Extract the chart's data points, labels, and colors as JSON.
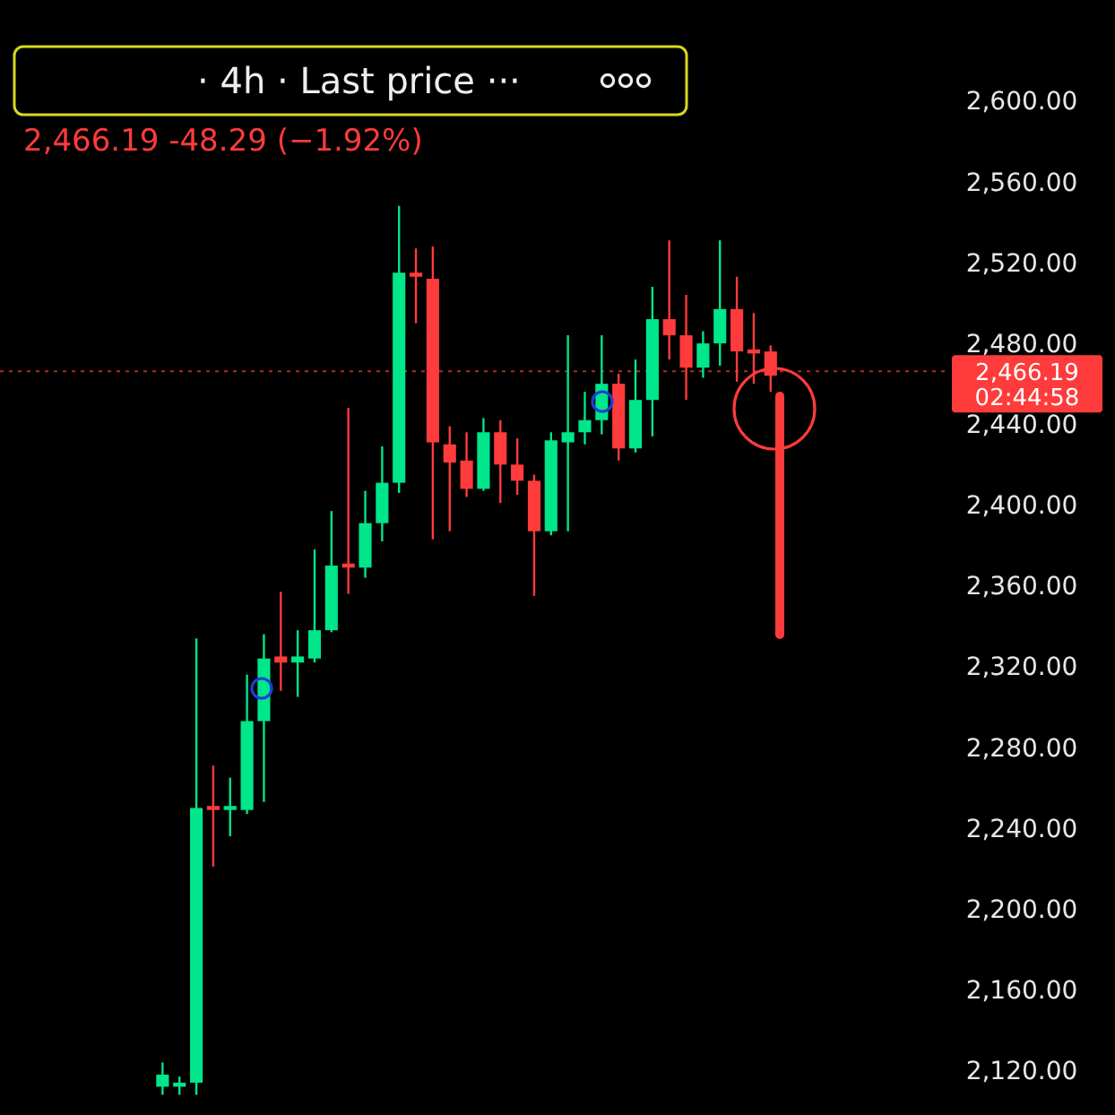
{
  "chart_data": {
    "type": "candlestick",
    "title": "· 4h · Last price ···",
    "subtitle": "2,466.19  -48.29 (−1.92%)",
    "categories": [
      null,
      null,
      null,
      null,
      null,
      null,
      null,
      null,
      null,
      null,
      null,
      null,
      null,
      null,
      null,
      null,
      null,
      null,
      null,
      null,
      null,
      null,
      null,
      null,
      null,
      null,
      null,
      null,
      null,
      null,
      null,
      null,
      null,
      null,
      null,
      null,
      null,
      null,
      null,
      null,
      null,
      null,
      null,
      null,
      null,
      null,
      null,
      null,
      null,
      null,
      null,
      null,
      null,
      null,
      null,
      null
    ],
    "ohlc": [
      null,
      null,
      null,
      null,
      null,
      null,
      null,
      null,
      null,
      [
        2112,
        2124,
        2108,
        2118
      ],
      [
        2112,
        2117,
        2108,
        2114
      ],
      [
        2114,
        2334,
        2108,
        2250
      ],
      [
        2251,
        2271,
        2221,
        2249
      ],
      [
        2249,
        2265,
        2236,
        2251
      ],
      [
        2249,
        2316,
        2247,
        2293
      ],
      [
        2293,
        2336,
        2253,
        2324
      ],
      [
        2325,
        2357,
        2308,
        2322
      ],
      [
        2322,
        2338,
        2305,
        2325
      ],
      [
        2324,
        2378,
        2322,
        2338
      ],
      [
        2338,
        2397,
        2337,
        2370
      ],
      [
        2371,
        2448,
        2356,
        2369
      ],
      [
        2369,
        2407,
        2364,
        2391
      ],
      [
        2391,
        2429,
        2382,
        2411
      ],
      [
        2411,
        2548,
        2406,
        2515
      ],
      [
        2515,
        2527,
        2490,
        2513
      ],
      [
        2512,
        2528,
        2383,
        2431
      ],
      [
        2430,
        2439,
        2387,
        2421
      ],
      [
        2422,
        2436,
        2404,
        2408
      ],
      [
        2408,
        2443,
        2407,
        2436
      ],
      [
        2436,
        2442,
        2401,
        2420
      ],
      [
        2420,
        2433,
        2405,
        2412
      ],
      [
        2412,
        2415,
        2355,
        2387
      ],
      [
        2387,
        2436,
        2385,
        2432
      ],
      [
        2431,
        2484,
        2387,
        2436
      ],
      [
        2436,
        2456,
        2430,
        2442
      ],
      [
        2442,
        2484,
        2435,
        2460
      ],
      [
        2460,
        2465,
        2422,
        2428
      ],
      [
        2428,
        2472,
        2426,
        2452
      ],
      [
        2452,
        2508,
        2434,
        2492
      ],
      [
        2492,
        2531,
        2472,
        2484
      ],
      [
        2484,
        2504,
        2452,
        2468
      ],
      [
        2468,
        2486,
        2463,
        2480
      ],
      [
        2480,
        2531,
        2469,
        2497
      ],
      [
        2497,
        2513,
        2461,
        2476
      ],
      [
        2477,
        2495,
        2460,
        2475
      ],
      [
        2476,
        2479,
        2456,
        2464
      ],
      null,
      null,
      null,
      null,
      null,
      null,
      null,
      null,
      null,
      null
    ],
    "colors": [
      null,
      null,
      null,
      null,
      null,
      null,
      null,
      null,
      null,
      "#00e68a",
      "#00e68a",
      "#00e68a",
      "#ff3b3b",
      "#00e68a",
      "#00e68a",
      "#00e68a",
      "#ff3b3b",
      "#00e68a",
      "#00e68a",
      "#00e68a",
      "#ff3b3b",
      "#00e68a",
      "#00e68a",
      "#00e68a",
      "#ff3b3b",
      "#ff3b3b",
      "#ff3b3b",
      "#ff3b3b",
      "#00e68a",
      "#ff3b3b",
      "#ff3b3b",
      "#ff3b3b",
      "#00e68a",
      "#00e68a",
      "#00e68a",
      "#00e68a",
      "#ff3b3b",
      "#00e68a",
      "#00e68a",
      "#ff3b3b",
      "#ff3b3b",
      "#00e68a",
      "#00e68a",
      "#ff3b3b",
      "#ff3b3b",
      "#ff3b3b",
      null,
      null,
      null,
      null,
      null,
      null,
      null,
      null,
      null,
      null
    ],
    "ylim": [
      2098,
      2650
    ],
    "yticks": [
      {
        "value": 2120,
        "label": "2,120.00"
      },
      {
        "value": 2160,
        "label": "2,160.00"
      },
      {
        "value": 2200,
        "label": "2,200.00"
      },
      {
        "value": 2240,
        "label": "2,240.00"
      },
      {
        "value": 2280,
        "label": "2,280.00"
      },
      {
        "value": 2320,
        "label": "2,320.00"
      },
      {
        "value": 2360,
        "label": "2,360.00"
      },
      {
        "value": 2400,
        "label": "2,400.00"
      },
      {
        "value": 2440,
        "label": "2,440.00"
      },
      {
        "value": 2480,
        "label": "2,480.00"
      },
      {
        "value": 2520,
        "label": "2,520.00"
      },
      {
        "value": 2560,
        "label": "2,560.00"
      },
      {
        "value": 2600,
        "label": "2,600.00"
      }
    ],
    "tick_labels": "y",
    "ref_lines": [
      {
        "axis": "y",
        "value": 2466.19,
        "label": "2,466.19",
        "color": "#ff3b3b",
        "line_style": "dotted"
      }
    ],
    "annotations": [
      "02:44:58"
    ]
  }
}
